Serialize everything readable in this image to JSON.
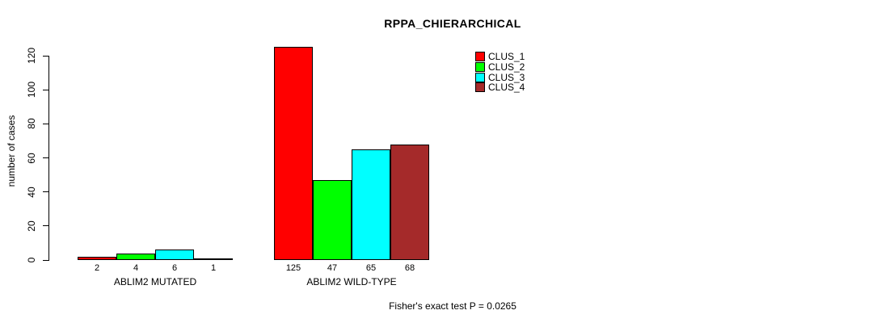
{
  "chart_data": {
    "type": "bar",
    "title": "RPPA_CHIERARCHICAL",
    "xlabel": "",
    "ylabel": "number of cases",
    "ylim": [
      0,
      120
    ],
    "yticks": [
      0,
      20,
      40,
      60,
      80,
      100,
      120
    ],
    "categories": [
      "ABLIM2 MUTATED",
      "ABLIM2 WILD-TYPE"
    ],
    "series": [
      {
        "name": "CLUS_1",
        "color": "#ff0000",
        "values": [
          2,
          125
        ]
      },
      {
        "name": "CLUS_2",
        "color": "#00ff00",
        "values": [
          4,
          47
        ]
      },
      {
        "name": "CLUS_3",
        "color": "#00ffff",
        "values": [
          6,
          65
        ]
      },
      {
        "name": "CLUS_4",
        "color": "#a52a2a",
        "values": [
          1,
          68
        ]
      }
    ],
    "legend": {
      "position": "top-right",
      "entries": [
        "CLUS_1",
        "CLUS_2",
        "CLUS_3",
        "CLUS_4"
      ]
    },
    "annotation": "Fisher's exact test P = 0.0265",
    "grid": false,
    "background": "#ffffff",
    "text_color": "#000000"
  }
}
